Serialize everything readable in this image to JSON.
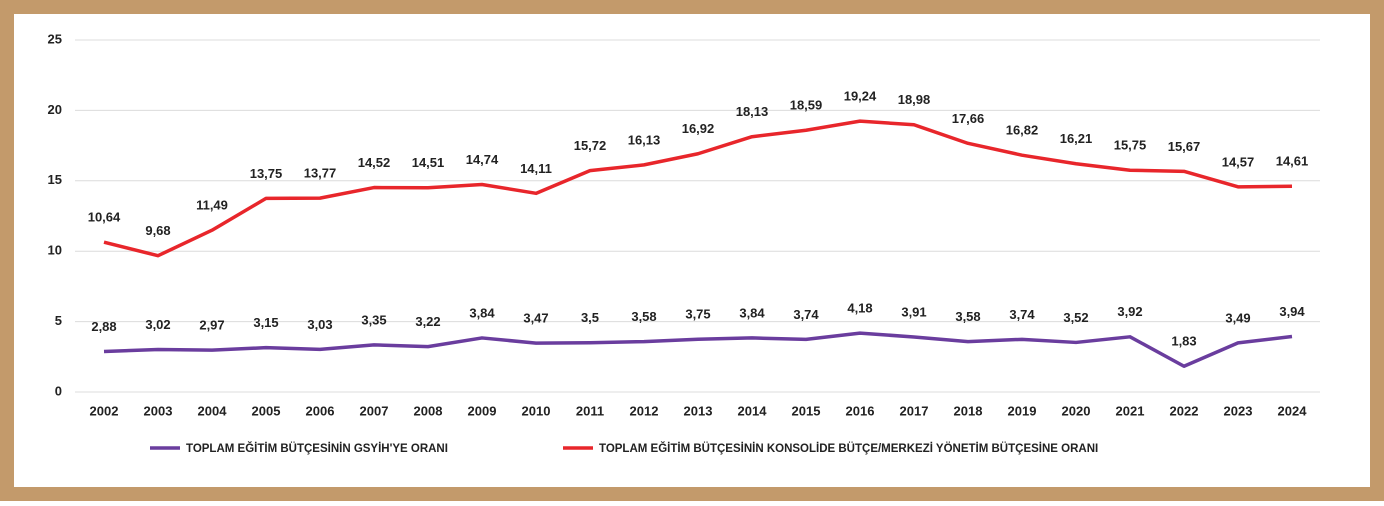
{
  "chart_data": {
    "type": "line",
    "categories": [
      "2002",
      "2003",
      "2004",
      "2005",
      "2006",
      "2007",
      "2008",
      "2009",
      "2010",
      "2011",
      "2012",
      "2013",
      "2014",
      "2015",
      "2016",
      "2017",
      "2018",
      "2019",
      "2020",
      "2021",
      "2022",
      "2023",
      "2024"
    ],
    "series": [
      {
        "name": "TOPLAM EĞİTİM BÜTÇESİNİN GSYİH'YE ORANI",
        "color": "#6a3d9e",
        "values": [
          2.88,
          3.02,
          2.97,
          3.15,
          3.03,
          3.35,
          3.22,
          3.84,
          3.47,
          3.5,
          3.58,
          3.75,
          3.84,
          3.74,
          4.18,
          3.91,
          3.58,
          3.74,
          3.52,
          3.92,
          1.83,
          3.49,
          3.94
        ],
        "value_labels": [
          "2,88",
          "3,02",
          "2,97",
          "3,15",
          "3,03",
          "3,35",
          "3,22",
          "3,84",
          "3,47",
          "3,5",
          "3,58",
          "3,75",
          "3,84",
          "3,74",
          "4,18",
          "3,91",
          "3,58",
          "3,74",
          "3,52",
          "3,92",
          "1,83",
          "3,49",
          "3,94"
        ]
      },
      {
        "name": "TOPLAM EĞİTİM BÜTÇESİNİN KONSOLİDE BÜTÇE/MERKEZİ YÖNETİM BÜTÇESİNE ORANI",
        "color": "#e8262b",
        "values": [
          10.64,
          9.68,
          11.49,
          13.75,
          13.77,
          14.52,
          14.51,
          14.74,
          14.11,
          15.72,
          16.13,
          16.92,
          18.13,
          18.59,
          19.24,
          18.98,
          17.66,
          16.82,
          16.21,
          15.75,
          15.67,
          14.57,
          14.61
        ],
        "value_labels": [
          "10,64",
          "9,68",
          "11,49",
          "13,75",
          "13,77",
          "14,52",
          "14,51",
          "14,74",
          "14,11",
          "15,72",
          "16,13",
          "16,92",
          "18,13",
          "18,59",
          "19,24",
          "18,98",
          "17,66",
          "16,82",
          "16,21",
          "15,75",
          "15,67",
          "14,57",
          "14,61"
        ]
      }
    ],
    "ylim": [
      0,
      25
    ],
    "yticks": [
      0,
      5,
      10,
      15,
      20,
      25
    ],
    "grid": true,
    "legend": "bottom"
  }
}
